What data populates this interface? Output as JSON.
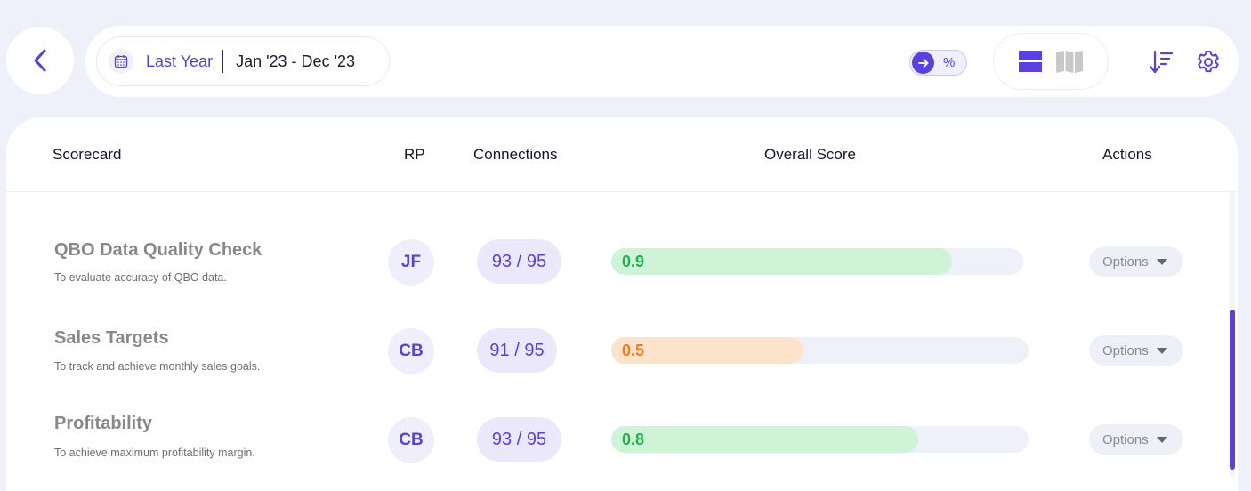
{
  "toolbar": {
    "period_label": "Last Year",
    "date_range": "Jan '23 - Dec '23",
    "percent_toggle_label": "%",
    "accent_color": "#5b3fe0",
    "icons": [
      "chevron-left-icon",
      "calendar-icon",
      "arrow-right-icon",
      "list-view-icon",
      "map-view-icon",
      "sort-descending-icon",
      "gear-icon"
    ]
  },
  "table": {
    "headers": {
      "scorecard": "Scorecard",
      "rp": "RP",
      "connections": "Connections",
      "overall_score": "Overall Score",
      "actions": "Actions"
    },
    "rows": [
      {
        "title": "QBO Data Quality Check",
        "description": "To evaluate accuracy of QBO data.",
        "rp": "JF",
        "connections": "93 / 95",
        "score_label": "0.9",
        "score": 0.9,
        "score_color": "#cef3d7",
        "score_text_color": "#22b14c",
        "action_label": "Options"
      },
      {
        "title": "Sales Targets",
        "description": "To track and achieve monthly sales goals.",
        "rp": "CB",
        "connections": "91 / 95",
        "score_label": "0.5",
        "score": 0.5,
        "score_color": "#fde3cc",
        "score_text_color": "#f07a14",
        "action_label": "Options"
      },
      {
        "title": "Profitability",
        "description": "To achieve maximum profitability margin.",
        "rp": "CB",
        "connections": "93 / 95",
        "score_label": "0.8",
        "score": 0.8,
        "score_color": "#cef3d7",
        "score_text_color": "#22b14c",
        "action_label": "Options"
      }
    ]
  }
}
